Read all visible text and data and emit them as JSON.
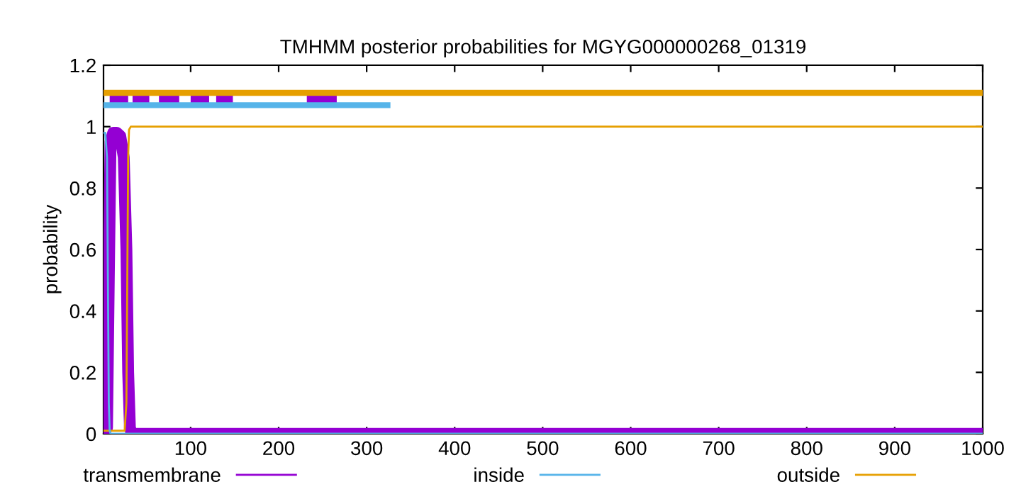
{
  "chart_data": {
    "type": "line",
    "title": "TMHMM posterior probabilities for MGYG000000268_01319",
    "ylabel": "probability",
    "xlim": [
      1,
      1000
    ],
    "ylim": [
      0,
      1.2
    ],
    "xticks": [
      100,
      200,
      300,
      400,
      500,
      600,
      700,
      800,
      900,
      1000
    ],
    "yticks": [
      0,
      {
        "value": 0.2,
        "label": "0.2"
      },
      {
        "value": 0.4,
        "label": "0.4"
      },
      {
        "value": 0.6,
        "label": "0.6"
      },
      {
        "value": 0.8,
        "label": "0.8"
      },
      1,
      {
        "value": 1.2,
        "label": "1.2"
      }
    ],
    "grid": false,
    "legend": "bottom",
    "marker": "none",
    "line_style": "solid",
    "series": [
      {
        "name": "transmembrane",
        "color": "#9400d3",
        "x": [
          1,
          5,
          7,
          9,
          12,
          16,
          20,
          24,
          27,
          29,
          31,
          33,
          1000
        ],
        "values": [
          0,
          0.02,
          0.5,
          0.95,
          0.98,
          0.98,
          0.97,
          0.9,
          0.6,
          0.2,
          0.02,
          0,
          0
        ]
      },
      {
        "name": "inside",
        "color": "#56b4e9",
        "x": [
          1,
          3,
          5,
          6,
          7,
          8,
          9,
          1000
        ],
        "values": [
          0.98,
          0.98,
          0.9,
          0.5,
          0.1,
          0.01,
          0,
          0
        ]
      },
      {
        "name": "outside",
        "color": "#e69f00",
        "x": [
          1,
          25,
          27,
          28,
          29,
          30,
          32,
          1000
        ],
        "values": [
          0.01,
          0.01,
          0.1,
          0.5,
          0.9,
          0.99,
          1,
          1
        ]
      },
      {
        "color": "#e69f00",
        "x": [
          1,
          1000
        ],
        "values": [
          1.11,
          1.11
        ]
      },
      {
        "color": "#56b4e9",
        "x": [
          1,
          327
        ],
        "values": [
          1.07,
          1.07
        ]
      },
      {
        "color": "#9400d3",
        "x": [
          8,
          29
        ],
        "values": [
          1.09,
          1.09
        ]
      },
      {
        "color": "#9400d3",
        "x": [
          34,
          53
        ],
        "values": [
          1.09,
          1.09
        ]
      },
      {
        "color": "#9400d3",
        "x": [
          64,
          87
        ],
        "values": [
          1.09,
          1.09
        ]
      },
      {
        "color": "#9400d3",
        "x": [
          100,
          121
        ],
        "values": [
          1.09,
          1.09
        ]
      },
      {
        "color": "#9400d3",
        "x": [
          129,
          148
        ],
        "values": [
          1.09,
          1.09
        ]
      },
      {
        "color": "#9400d3",
        "x": [
          232,
          266
        ],
        "values": [
          1.09,
          1.09
        ]
      }
    ]
  }
}
